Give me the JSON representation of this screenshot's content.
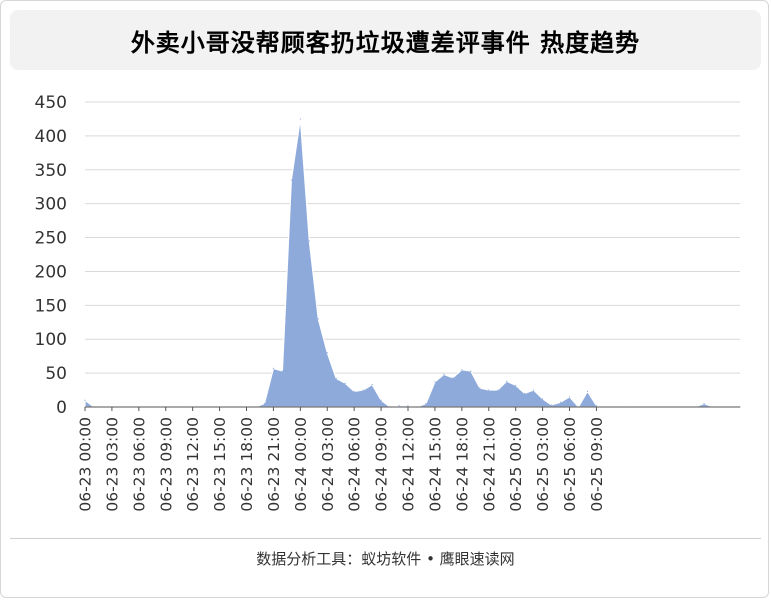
{
  "chart_data": {
    "type": "area",
    "title": "外卖小哥没帮顾客扔垃圾遭差评事件 热度趋势",
    "xlabel": "",
    "ylabel": "",
    "ylim": [
      0,
      450
    ],
    "yticks": [
      0,
      50,
      100,
      150,
      200,
      250,
      300,
      350,
      400,
      450
    ],
    "grid": true,
    "legend": "none",
    "color": "#8eaadb",
    "x_tick_labels": [
      "06-23 00:00",
      "06-23 03:00",
      "06-23 06:00",
      "06-23 09:00",
      "06-23 12:00",
      "06-23 15:00",
      "06-23 18:00",
      "06-23 21:00",
      "06-24 00:00",
      "06-24 03:00",
      "06-24 06:00",
      "06-24 09:00",
      "06-24 12:00",
      "06-24 15:00",
      "06-24 18:00",
      "06-24 21:00",
      "06-25 00:00",
      "06-25 03:00",
      "06-25 06:00",
      "06-25 09:00"
    ],
    "x_interval_hours": 1,
    "values": [
      10,
      0,
      0,
      0,
      0,
      0,
      0,
      0,
      0,
      0,
      0,
      0,
      0,
      0,
      0,
      0,
      0,
      0,
      0,
      0,
      5,
      57,
      53,
      335,
      425,
      245,
      130,
      80,
      42,
      35,
      23,
      25,
      33,
      10,
      0,
      2,
      2,
      0,
      5,
      37,
      48,
      43,
      55,
      53,
      28,
      25,
      25,
      38,
      32,
      20,
      25,
      12,
      3,
      7,
      15,
      0,
      23,
      2,
      0,
      0,
      0,
      0,
      0,
      0,
      0,
      0,
      0,
      0,
      0,
      5,
      0,
      0,
      0,
      0
    ]
  },
  "footer": {
    "text": "数据分析工具：蚁坊软件 • 鹰眼速读网"
  }
}
